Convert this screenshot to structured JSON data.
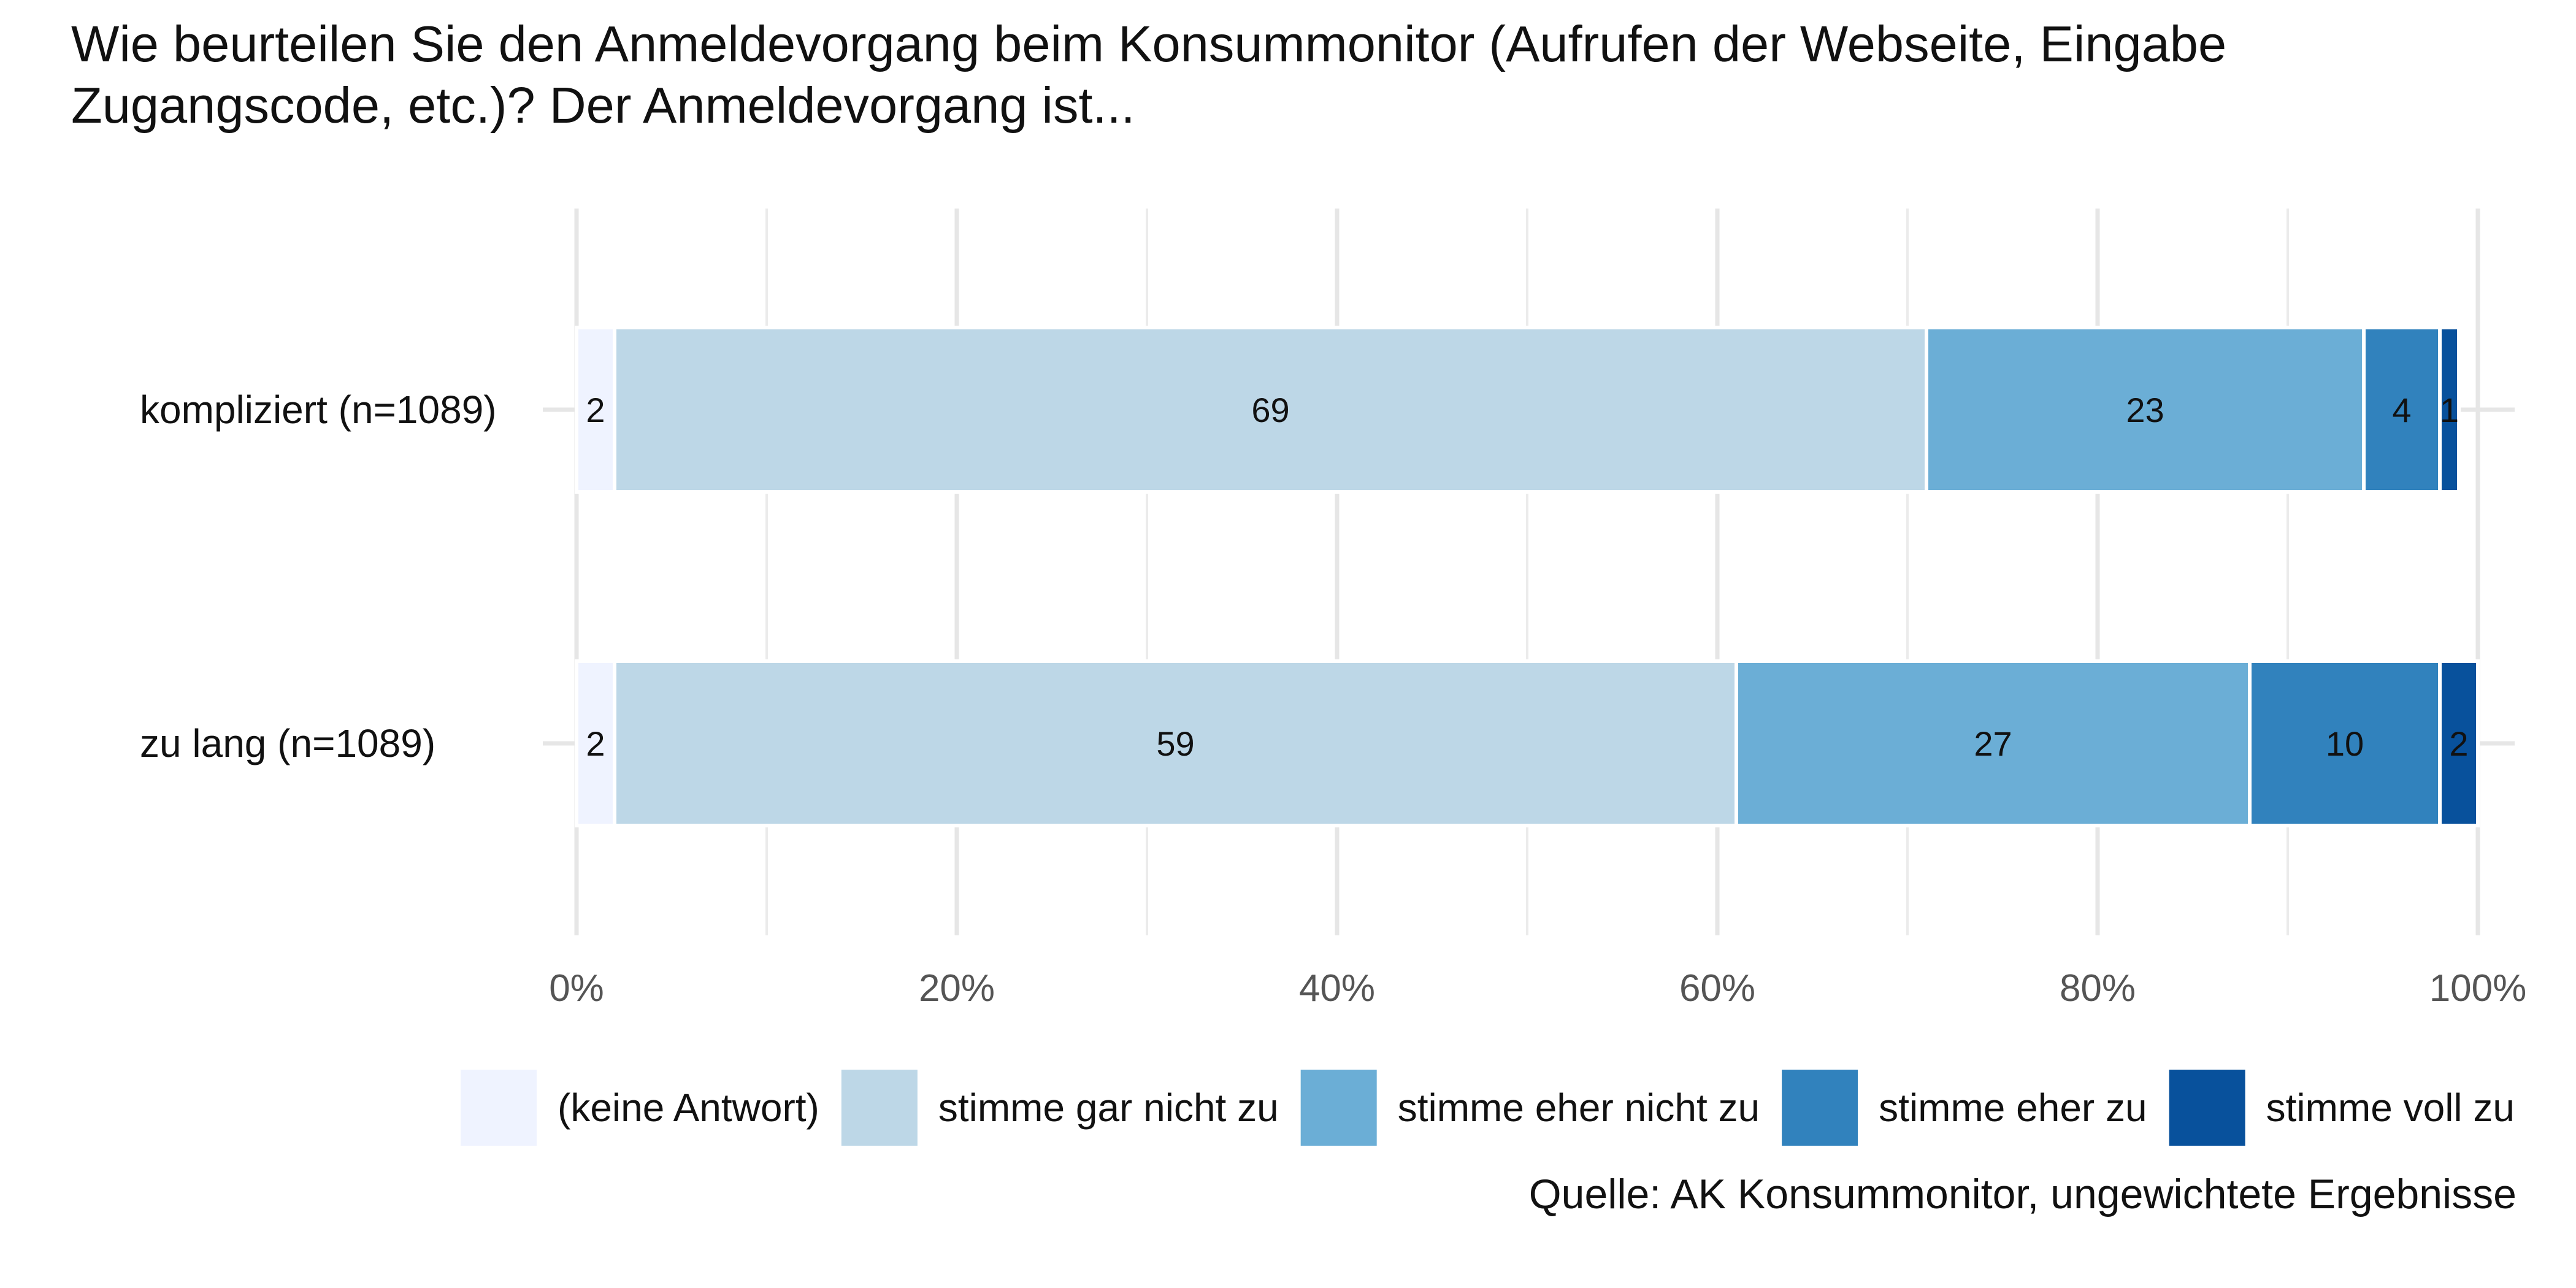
{
  "chart_data": {
    "type": "bar",
    "orientation": "horizontal",
    "stacked": true,
    "title": "Wie beurteilen Sie den Anmeldevorgang beim Konsummonitor (Aufrufen der Webseite, Eingabe Zugangscode, etc.)? Der Anmeldevorgang ist...",
    "categories": [
      "kompliziert (n=1089)",
      "zu lang (n=1089)"
    ],
    "series": [
      {
        "name": "(keine Antwort)",
        "color": "#eff3ff",
        "values": [
          2,
          2
        ]
      },
      {
        "name": "stimme gar nicht zu",
        "color": "#bdd7e7",
        "values": [
          69,
          59
        ]
      },
      {
        "name": "stimme eher nicht zu",
        "color": "#6baed6",
        "values": [
          23,
          27
        ]
      },
      {
        "name": "stimme eher zu",
        "color": "#3182bd",
        "values": [
          4,
          10
        ]
      },
      {
        "name": "stimme voll zu",
        "color": "#08519c",
        "values": [
          1,
          2
        ]
      }
    ],
    "xlim": [
      0,
      100
    ],
    "x_ticks": [
      "0%",
      "20%",
      "40%",
      "60%",
      "80%",
      "100%"
    ],
    "x_tick_values": [
      0,
      20,
      40,
      60,
      80,
      100
    ],
    "xlabel": "",
    "ylabel": "",
    "grid": true,
    "legend_position": "bottom",
    "caption": "Quelle: AK Konsummonitor, ungewichtete Ergebnisse"
  }
}
